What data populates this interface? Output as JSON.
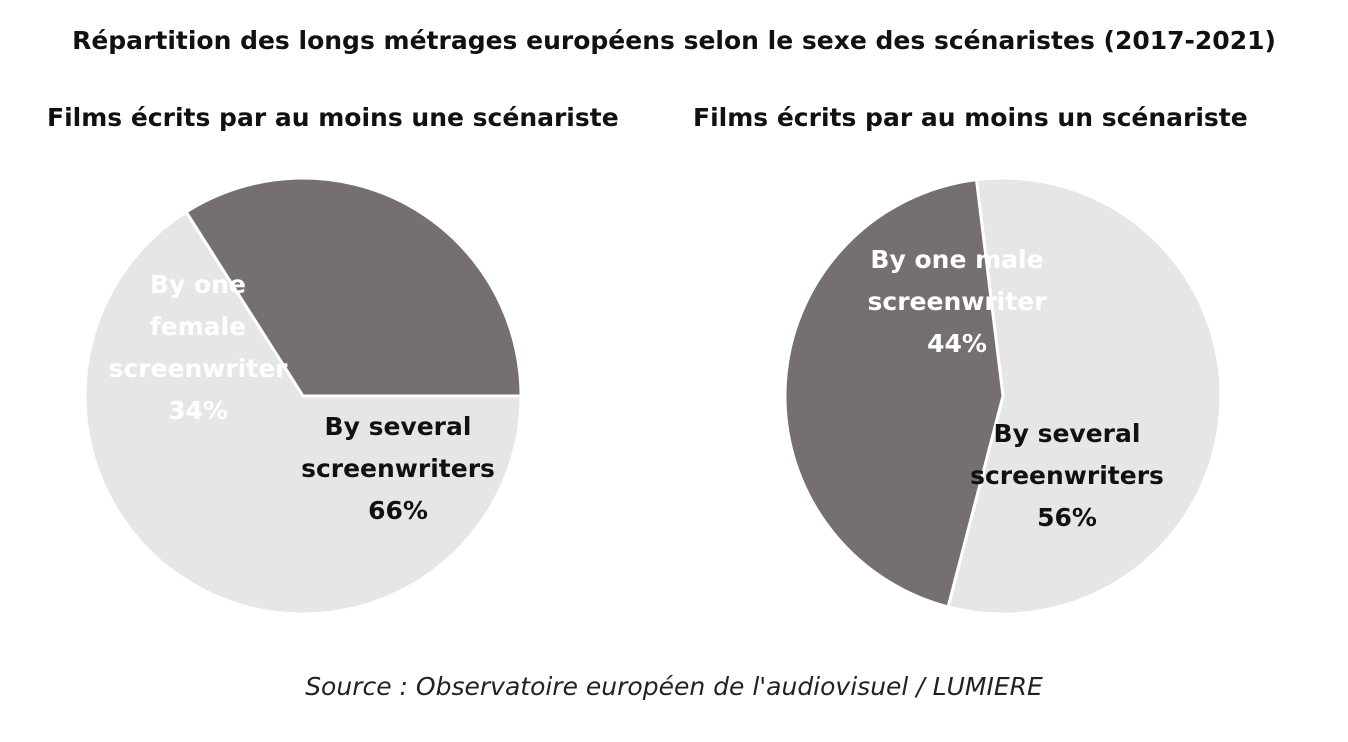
{
  "title": "Répartition des longs métrages européens selon le sexe des scénaristes (2017-2021)",
  "source": "Source : Observatoire européen de l'audiovisuel / LUMIERE",
  "colors": {
    "dark_slice": "#756f6f",
    "light_slice": "#e7e6e6",
    "stroke": "#ffffff",
    "dark_label": "#ffffff",
    "light_label": "#111111"
  },
  "chart_data": [
    {
      "type": "pie",
      "title": "Films écrits par au moins une scénariste",
      "slices": [
        {
          "label_lines": [
            "By several",
            "screenwriters",
            "66%"
          ],
          "value": 66,
          "color": "#e7e6e6"
        },
        {
          "label_lines": [
            "By one",
            "female",
            "screenwriter",
            "34%"
          ],
          "value": 34,
          "color": "#756f6f"
        }
      ]
    },
    {
      "type": "pie",
      "title": "Films écrits par au moins un scénariste",
      "slices": [
        {
          "label_lines": [
            "By several",
            "screenwriters",
            "56%"
          ],
          "value": 56,
          "color": "#e7e6e6"
        },
        {
          "label_lines": [
            "By one male",
            "screenwriter",
            "44%"
          ],
          "value": 44,
          "color": "#756f6f"
        }
      ]
    }
  ]
}
